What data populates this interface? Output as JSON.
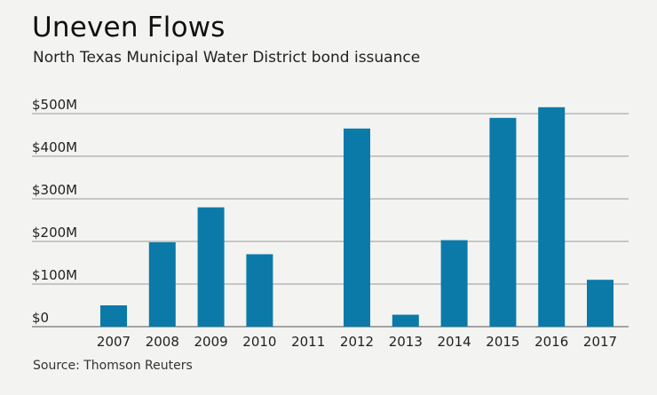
{
  "header": {
    "title": "Uneven Flows",
    "subtitle": "North Texas Municipal Water District bond issuance"
  },
  "footer": {
    "source": "Source: Thomson Reuters"
  },
  "colors": {
    "bar": "#0b7aa8",
    "grid": "#9a9a9a",
    "background": "#f3f3f1"
  },
  "chart_data": {
    "type": "bar",
    "title": "Uneven Flows",
    "subtitle": "North Texas Municipal Water District bond issuance",
    "xlabel": "",
    "ylabel": "",
    "categories": [
      "2007",
      "2008",
      "2009",
      "2010",
      "2011",
      "2012",
      "2013",
      "2014",
      "2015",
      "2016",
      "2017"
    ],
    "values": [
      50,
      198,
      280,
      170,
      0,
      465,
      28,
      203,
      490,
      515,
      110
    ],
    "unit": "$M",
    "yticks": [
      0,
      100,
      200,
      300,
      400,
      500
    ],
    "ytick_labels": [
      "$0",
      "$100M",
      "$200M",
      "$300M",
      "$400M",
      "$500M"
    ],
    "ylim": [
      0,
      500
    ],
    "grid": true,
    "legend": "none"
  }
}
